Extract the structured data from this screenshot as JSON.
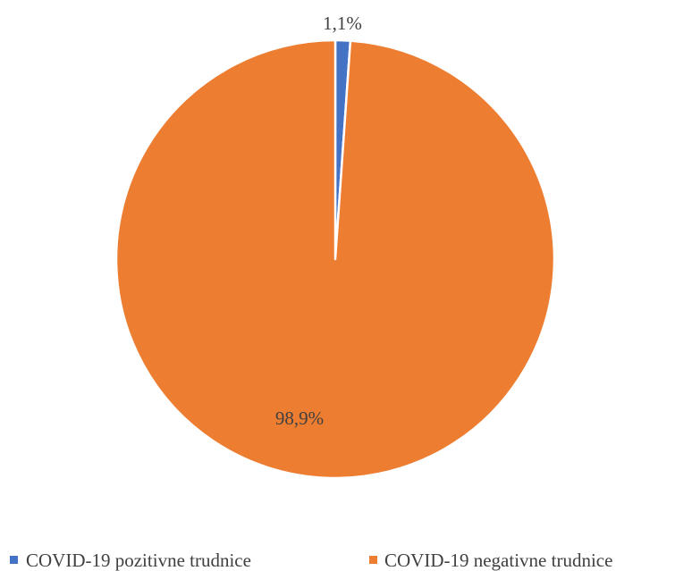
{
  "chart_data": {
    "type": "pie",
    "title": "",
    "series": [
      {
        "values": [
          1.1,
          98.9
        ],
        "data_labels": [
          "1,1%",
          "98,9%"
        ]
      }
    ],
    "categories": [
      "COVID-19 pozitivne trudnice",
      "COVID-19 negativne trudnice"
    ],
    "colors": [
      "#4472c4",
      "#ed7d31"
    ],
    "start_angle_deg": 0,
    "direction": "clockwise",
    "legend_position": "bottom"
  }
}
